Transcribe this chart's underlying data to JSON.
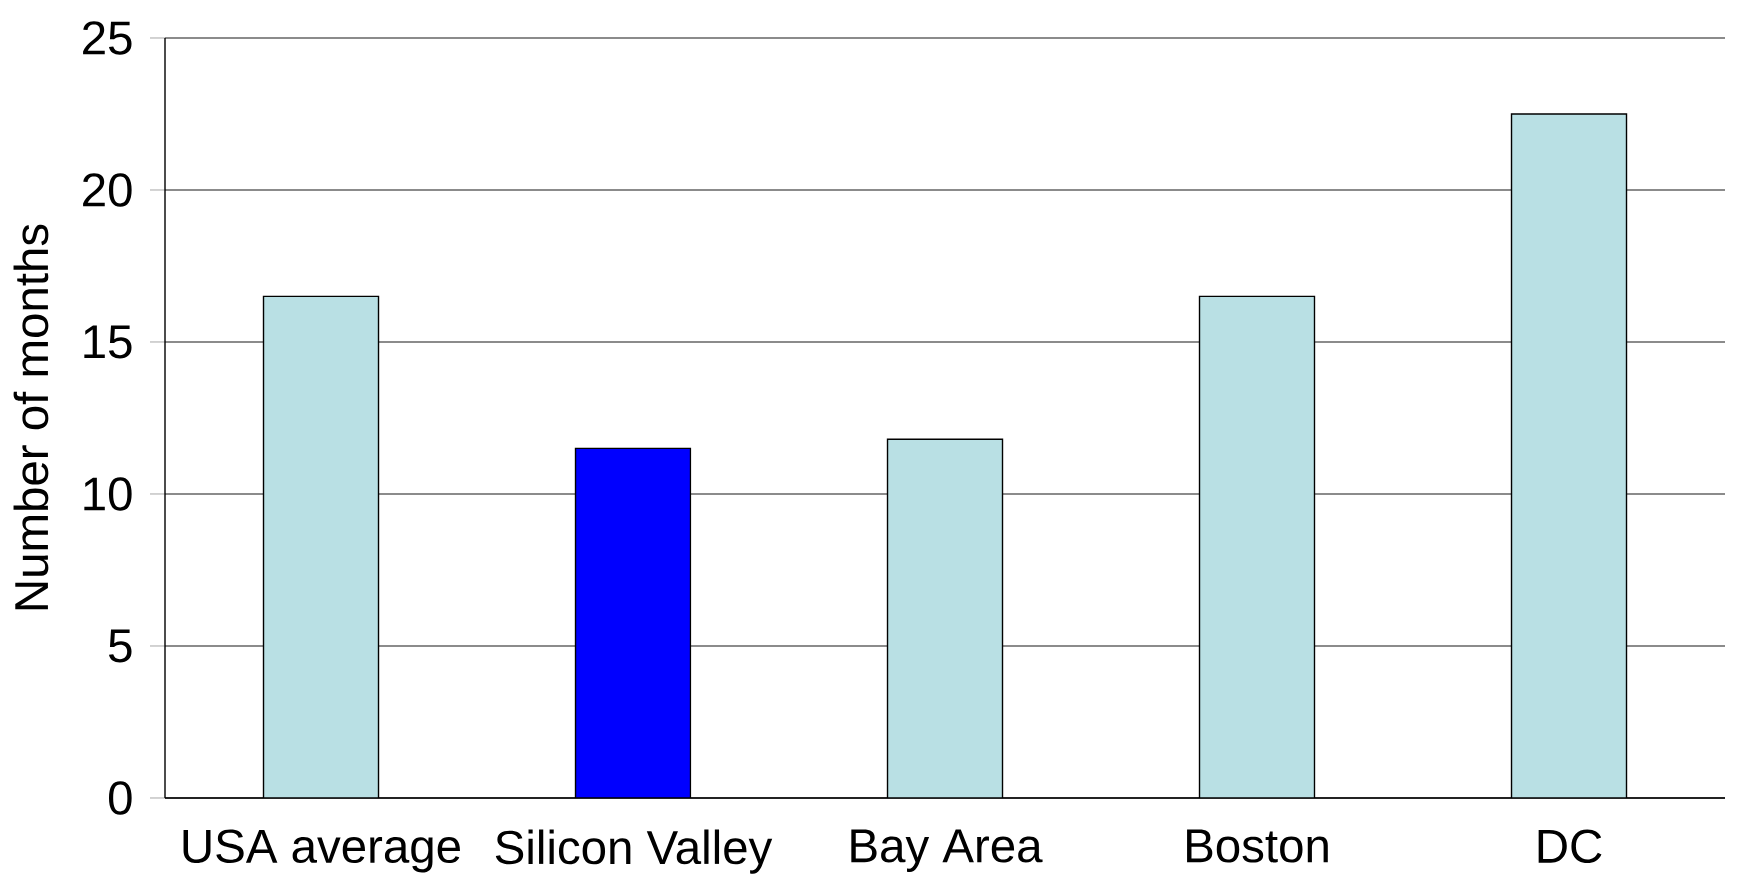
{
  "chart_data": {
    "type": "bar",
    "ylabel": "Number of months",
    "categories": [
      "USA average",
      "Silicon Valley",
      "Bay Area",
      "Boston",
      "DC"
    ],
    "values": [
      16.5,
      11.5,
      11.8,
      16.5,
      22.5
    ],
    "colors": [
      "#b9e0e4",
      "#0000ff",
      "#b9e0e4",
      "#b9e0e4",
      "#b9e0e4"
    ],
    "ylim": [
      0,
      25
    ],
    "yticks": [
      0,
      5,
      10,
      15,
      20,
      25
    ],
    "grid": "y"
  }
}
